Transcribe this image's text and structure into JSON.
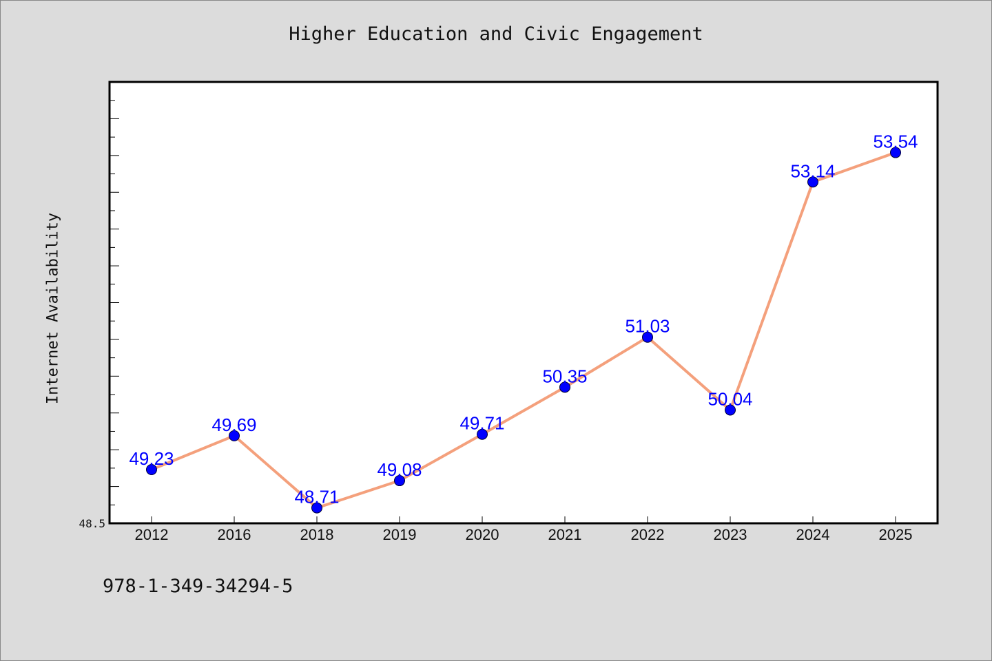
{
  "chart_data": {
    "type": "line",
    "title": "Higher Education and Civic Engagement",
    "ylabel": "Internet Availability",
    "xlabel": "",
    "categories": [
      "2012",
      "2016",
      "2018",
      "2019",
      "2020",
      "2021",
      "2022",
      "2023",
      "2024",
      "2025"
    ],
    "series": [
      {
        "values": [
          49.23,
          49.69,
          48.71,
          49.08,
          49.71,
          50.35,
          51.03,
          50.04,
          53.14,
          53.54
        ],
        "data_labels": [
          "49.23",
          "49.69",
          "48.71",
          "49.08",
          "49.71",
          "50.35",
          "51.03",
          "50.04",
          "53.14",
          "53.54"
        ],
        "line_color": "#f4a07c",
        "marker_color": "#0000ff"
      }
    ],
    "ylim": [
      48.5,
      54.5
    ],
    "ytick_labels": [
      "48.5"
    ],
    "grid": false,
    "legend": "none"
  },
  "footer": {
    "isbn": "978-1-349-34294-5"
  },
  "colors": {
    "background": "#dcdcdc",
    "plot_area": "#ffffff",
    "data_label": "#0000ff"
  }
}
